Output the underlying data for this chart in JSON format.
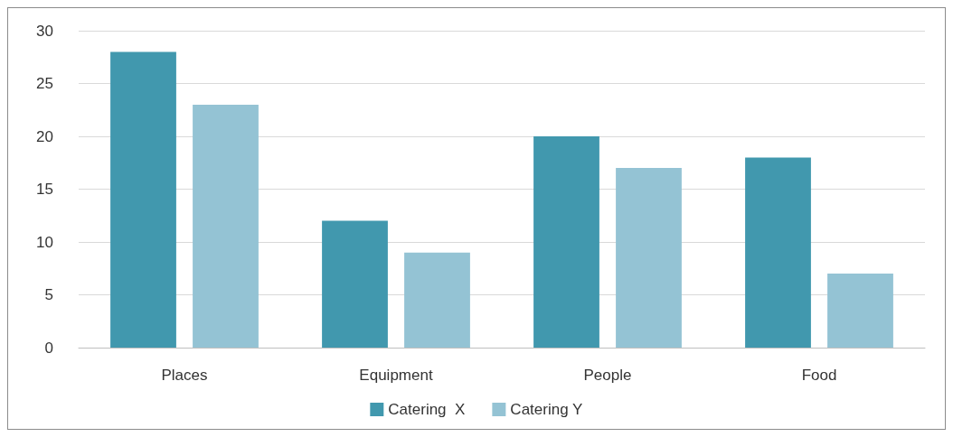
{
  "chart_data": {
    "type": "bar",
    "categories": [
      "Places",
      "Equipment",
      "People",
      "Food"
    ],
    "series": [
      {
        "name": "Catering  X",
        "color": "#4198ae",
        "values": [
          28,
          12,
          20,
          18
        ]
      },
      {
        "name": "Catering Y",
        "color": "#94c3d4",
        "values": [
          23,
          9,
          17,
          7
        ]
      }
    ],
    "ylim": [
      0,
      30
    ],
    "yticks": [
      0,
      5,
      10,
      15,
      20,
      25,
      30
    ],
    "grid": "y",
    "legend": "bottom"
  }
}
